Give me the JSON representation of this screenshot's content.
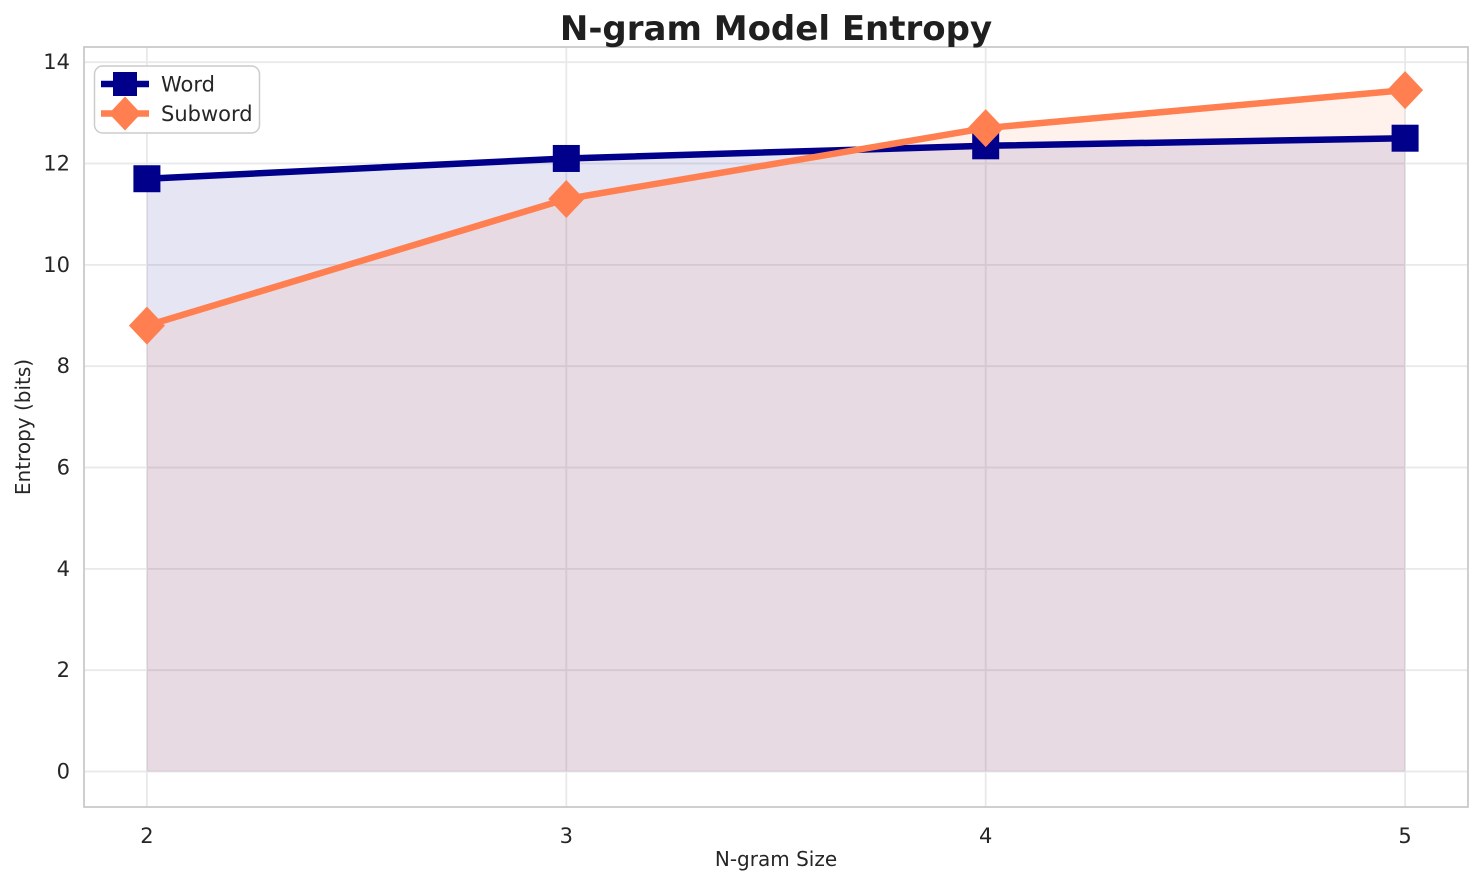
{
  "chart_data": {
    "type": "line",
    "title": "N-gram Model Entropy",
    "xlabel": "N-gram Size",
    "ylabel": "Entropy (bits)",
    "x": [
      2,
      3,
      4,
      5
    ],
    "series": [
      {
        "name": "Word",
        "values": [
          11.7,
          12.1,
          12.35,
          12.5
        ],
        "color": "#00008B",
        "marker": "square",
        "area_fill": true,
        "fill_alpha": 0.1
      },
      {
        "name": "Subword",
        "values": [
          8.8,
          11.3,
          12.7,
          13.45
        ],
        "color": "#FF7F50",
        "marker": "diamond",
        "area_fill": true,
        "fill_alpha": 0.1
      }
    ],
    "xtick_values": [
      2,
      3,
      4,
      5
    ],
    "xtick_labels": [
      "2",
      "3",
      "4",
      "5"
    ],
    "ytick_values": [
      0,
      2,
      4,
      6,
      8,
      10,
      12,
      14
    ],
    "ytick_labels": [
      "0",
      "2",
      "4",
      "6",
      "8",
      "10",
      "12",
      "14"
    ],
    "xlim": [
      1.85,
      5.15
    ],
    "ylim": [
      -0.7,
      14.3
    ],
    "grid": true,
    "legend": {
      "position": "upper left",
      "entries": [
        "Word",
        "Subword"
      ]
    },
    "style": {
      "background": "#ffffff",
      "grid_color": "#e9e9e9",
      "spine_color": "#cacaca",
      "title_color": "#1f1f1f",
      "axis_label_color": "#262626",
      "tick_label_color": "#262626",
      "legend_text_color": "#262626",
      "legend_border_color": "#cccccc",
      "legend_background": "#ffffff"
    }
  }
}
